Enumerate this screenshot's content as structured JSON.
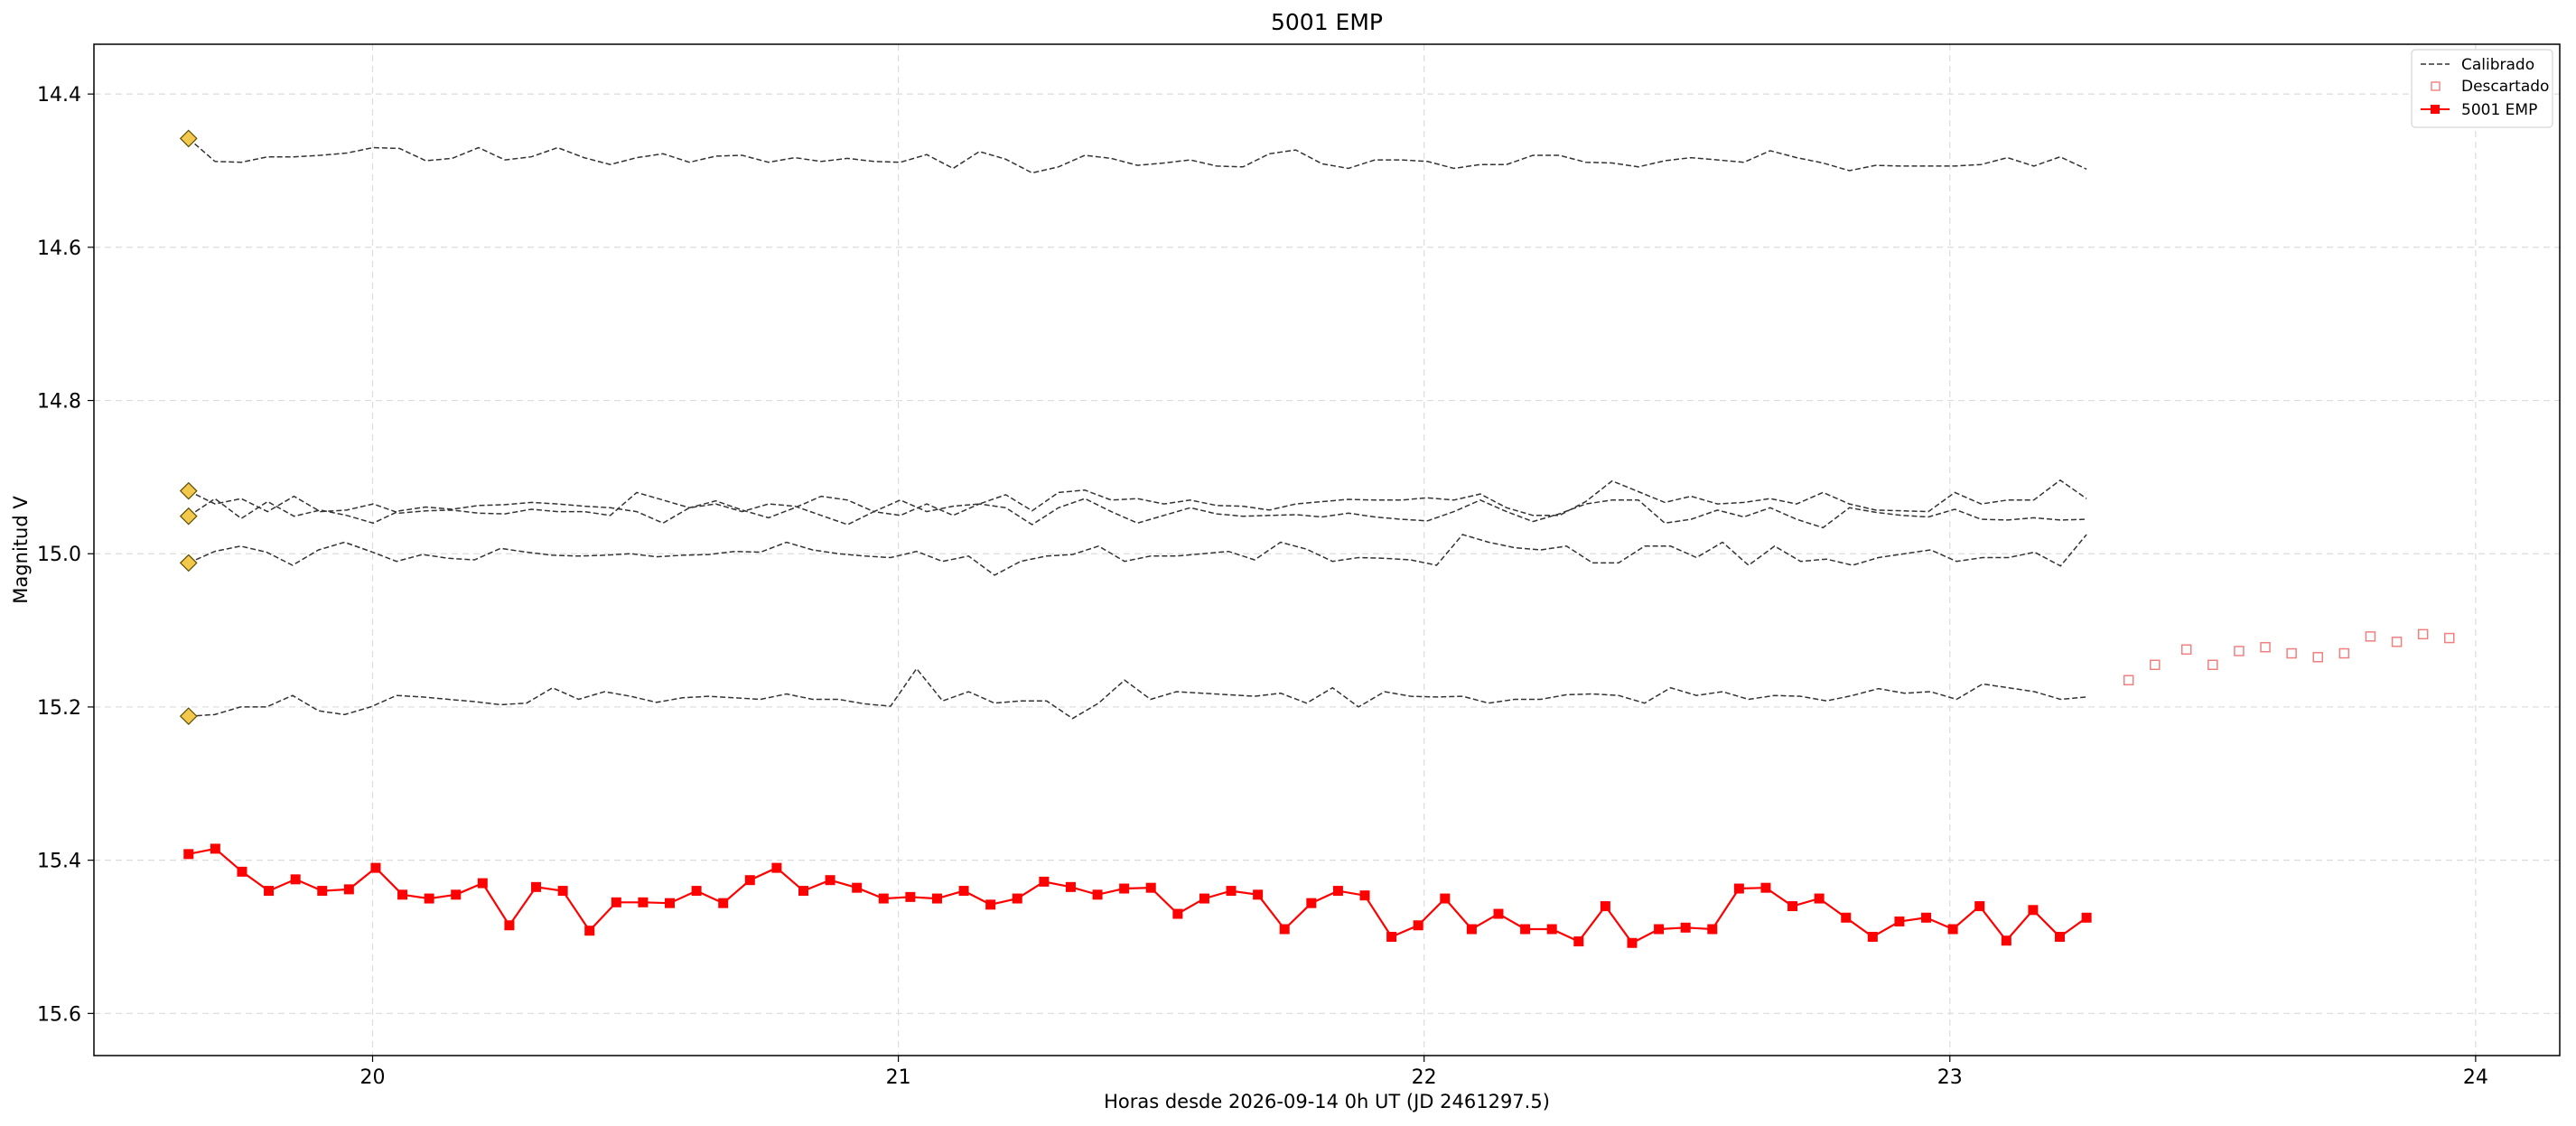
{
  "chart_data": {
    "type": "line",
    "title": "5001 EMP",
    "xlabel": "Horas desde 2026-09-14 0h UT (JD 2461297.5)",
    "ylabel": "Magnitud V",
    "xlim": [
      19.47,
      24.16
    ],
    "ylim": [
      15.655,
      14.335
    ],
    "y_inverted": true,
    "grid": true,
    "x_ticks": [
      "20",
      "21",
      "22",
      "23",
      "24"
    ],
    "y_ticks": [
      "14.4",
      "14.6",
      "14.8",
      "15.0",
      "15.2",
      "15.4",
      "15.6"
    ],
    "legend": {
      "placement": "top-right",
      "entries": [
        {
          "label": "Calibrado",
          "style": "dashed-line",
          "color": "#333333"
        },
        {
          "label": "Descartado",
          "style": "open-square",
          "color": "#f08080"
        },
        {
          "label": "5001 EMP",
          "style": "line-square",
          "color": "#ff0000"
        }
      ]
    },
    "comparison_start_markers": [
      14.458,
      14.918,
      14.951,
      15.012,
      15.212
    ],
    "comparison_series": [
      {
        "x_start": 19.65,
        "x_end": 23.26,
        "values": [
          14.458,
          14.488,
          14.489,
          14.482,
          14.482,
          14.48,
          14.477,
          14.47,
          14.471,
          14.487,
          14.484,
          14.47,
          14.486,
          14.482,
          14.47,
          14.483,
          14.492,
          14.483,
          14.478,
          14.489,
          14.481,
          14.48,
          14.489,
          14.483,
          14.488,
          14.484,
          14.488,
          14.489,
          14.479,
          14.497,
          14.475,
          14.485,
          14.503,
          14.495,
          14.48,
          14.484,
          14.493,
          14.49,
          14.486,
          14.494,
          14.495,
          14.478,
          14.473,
          14.491,
          14.497,
          14.486,
          14.486,
          14.488,
          14.497,
          14.492,
          14.492,
          14.48,
          14.48,
          14.489,
          14.49,
          14.495,
          14.487,
          14.483,
          14.486,
          14.489,
          14.474,
          14.483,
          14.49,
          14.5,
          14.493,
          14.494,
          14.494,
          14.494,
          14.492,
          14.483,
          14.494,
          14.482,
          14.498
        ]
      },
      {
        "x_start": 19.65,
        "x_end": 23.26,
        "values": [
          14.918,
          14.935,
          14.928,
          14.945,
          14.925,
          14.945,
          14.943,
          14.935,
          14.947,
          14.944,
          14.943,
          14.947,
          14.948,
          14.942,
          14.945,
          14.945,
          14.95,
          14.92,
          14.93,
          14.94,
          14.931,
          14.943,
          14.953,
          14.94,
          14.925,
          14.93,
          14.945,
          14.93,
          14.945,
          14.938,
          14.935,
          14.923,
          14.944,
          14.92,
          14.917,
          14.93,
          14.928,
          14.935,
          14.93,
          14.937,
          14.938,
          14.943,
          14.935,
          14.932,
          14.929,
          14.93,
          14.93,
          14.927,
          14.93,
          14.922,
          14.94,
          14.95,
          14.95,
          14.932,
          14.905,
          14.919,
          14.933,
          14.925,
          14.935,
          14.933,
          14.928,
          14.935,
          14.92,
          14.935,
          14.943,
          14.944,
          14.945,
          14.92,
          14.935,
          14.93,
          14.93,
          14.904,
          14.928
        ]
      },
      {
        "x_start": 19.65,
        "x_end": 23.26,
        "values": [
          14.951,
          14.928,
          14.954,
          14.932,
          14.951,
          14.943,
          14.95,
          14.96,
          14.944,
          14.939,
          14.942,
          14.937,
          14.936,
          14.933,
          14.935,
          14.938,
          14.94,
          14.945,
          14.96,
          14.94,
          14.935,
          14.945,
          14.935,
          14.938,
          14.95,
          14.962,
          14.945,
          14.95,
          14.935,
          14.95,
          14.935,
          14.94,
          14.962,
          14.94,
          14.928,
          14.945,
          14.96,
          14.95,
          14.94,
          14.948,
          14.951,
          14.95,
          14.949,
          14.952,
          14.947,
          14.952,
          14.955,
          14.957,
          14.945,
          14.93,
          14.945,
          14.958,
          14.948,
          14.935,
          14.93,
          14.93,
          14.96,
          14.955,
          14.943,
          14.952,
          14.94,
          14.955,
          14.966,
          14.94,
          14.946,
          14.95,
          14.952,
          14.942,
          14.955,
          14.956,
          14.953,
          14.956,
          14.955
        ]
      },
      {
        "x_start": 19.65,
        "x_end": 23.26,
        "values": [
          15.012,
          14.997,
          14.99,
          14.998,
          15.015,
          14.995,
          14.985,
          14.997,
          15.01,
          15.001,
          15.006,
          15.008,
          14.993,
          14.998,
          15.002,
          15.003,
          15.002,
          15.0,
          15.004,
          15.002,
          15.001,
          14.997,
          14.998,
          14.985,
          14.995,
          15.0,
          15.003,
          15.005,
          14.997,
          15.01,
          15.003,
          15.028,
          15.01,
          15.003,
          15.001,
          14.99,
          15.01,
          15.003,
          15.003,
          15.0,
          14.997,
          15.008,
          14.985,
          14.994,
          15.01,
          15.005,
          15.006,
          15.008,
          15.015,
          14.975,
          14.985,
          14.992,
          14.995,
          14.99,
          15.012,
          15.012,
          14.99,
          14.99,
          15.005,
          14.985,
          15.015,
          14.99,
          15.01,
          15.007,
          15.015,
          15.005,
          15.0,
          14.995,
          15.01,
          15.005,
          15.005,
          14.998,
          15.016,
          14.975
        ]
      },
      {
        "x_start": 19.65,
        "x_end": 23.26,
        "values": [
          15.212,
          15.21,
          15.2,
          15.2,
          15.185,
          15.205,
          15.21,
          15.2,
          15.185,
          15.187,
          15.19,
          15.193,
          15.197,
          15.195,
          15.175,
          15.19,
          15.18,
          15.186,
          15.194,
          15.188,
          15.186,
          15.188,
          15.19,
          15.183,
          15.19,
          15.19,
          15.196,
          15.199,
          15.15,
          15.192,
          15.18,
          15.195,
          15.192,
          15.192,
          15.215,
          15.195,
          15.165,
          15.19,
          15.18,
          15.182,
          15.184,
          15.186,
          15.182,
          15.195,
          15.175,
          15.2,
          15.18,
          15.186,
          15.187,
          15.186,
          15.195,
          15.19,
          15.19,
          15.184,
          15.183,
          15.185,
          15.195,
          15.175,
          15.185,
          15.18,
          15.19,
          15.185,
          15.186,
          15.192,
          15.185,
          15.176,
          15.182,
          15.18,
          15.19,
          15.17,
          15.175,
          15.18,
          15.19,
          15.187
        ]
      }
    ],
    "target_series": {
      "name": "5001 EMP",
      "x_start": 19.65,
      "x_end": 23.26,
      "values": [
        15.392,
        15.385,
        15.415,
        15.44,
        15.425,
        15.44,
        15.438,
        15.41,
        15.445,
        15.45,
        15.445,
        15.43,
        15.485,
        15.435,
        15.44,
        15.492,
        15.455,
        15.455,
        15.456,
        15.44,
        15.456,
        15.426,
        15.41,
        15.44,
        15.426,
        15.436,
        15.45,
        15.448,
        15.45,
        15.44,
        15.458,
        15.45,
        15.428,
        15.435,
        15.445,
        15.437,
        15.436,
        15.47,
        15.45,
        15.44,
        15.445,
        15.49,
        15.456,
        15.44,
        15.446,
        15.5,
        15.485,
        15.45,
        15.49,
        15.47,
        15.49,
        15.49,
        15.506,
        15.46,
        15.508,
        15.49,
        15.488,
        15.49,
        15.437,
        15.436,
        15.46,
        15.45,
        15.475,
        15.5,
        15.48,
        15.475,
        15.49,
        15.46,
        15.505,
        15.465,
        15.5,
        15.475
      ]
    },
    "discarded_points": {
      "x": [
        23.34,
        23.39,
        23.45,
        23.5,
        23.55,
        23.6,
        23.65,
        23.7,
        23.75,
        23.8,
        23.85,
        23.9,
        23.95
      ],
      "values": [
        15.165,
        15.145,
        15.125,
        15.145,
        15.127,
        15.122,
        15.13,
        15.135,
        15.13,
        15.108,
        15.115,
        15.105,
        15.11
      ]
    }
  }
}
